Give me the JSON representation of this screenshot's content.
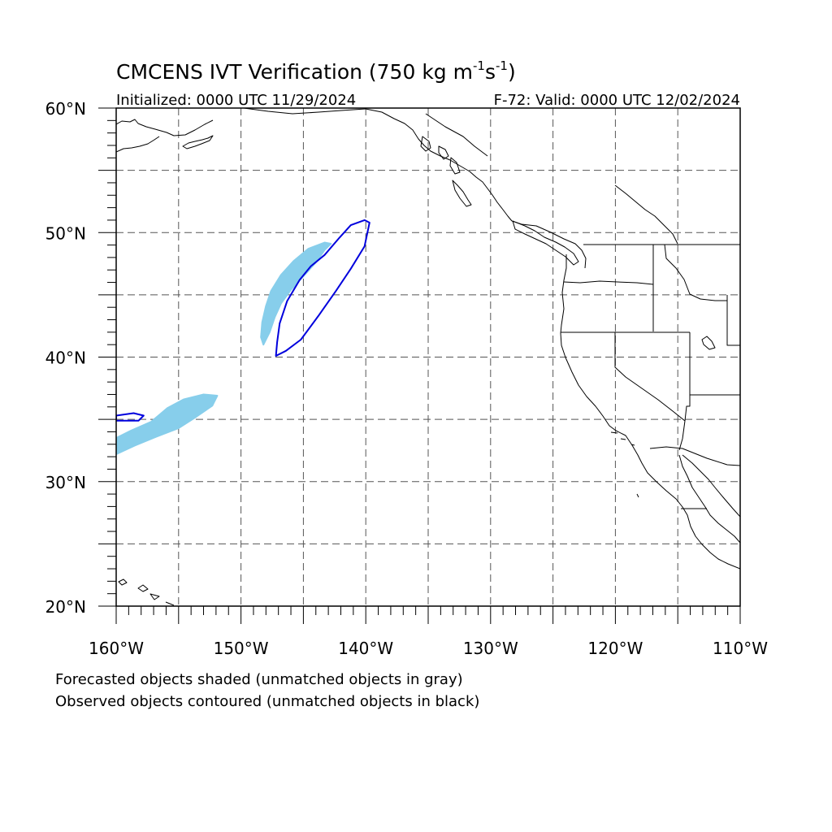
{
  "title": {
    "main": "CMCENS IVT Verification (750 kg m",
    "exp1": "-1",
    "mid": "s",
    "exp2": "-1",
    "close": ")"
  },
  "subtitle_left": "Initialized: 0000 UTC 11/29/2024",
  "subtitle_right": "F-72: Valid: 0000 UTC 12/02/2024",
  "map": {
    "lon_range": [
      -160,
      -110
    ],
    "lat_range": [
      20,
      60
    ],
    "grid_lines": "dashed",
    "grid_lon_step": 5,
    "grid_lat_step": 5,
    "lat_labels": [
      {
        "lat": 60,
        "text": "60°N"
      },
      {
        "lat": 50,
        "text": "50°N"
      },
      {
        "lat": 40,
        "text": "40°N"
      },
      {
        "lat": 30,
        "text": "30°N"
      },
      {
        "lat": 20,
        "text": "20°N"
      }
    ],
    "lon_labels": [
      {
        "lon": -160,
        "text": "160°W"
      },
      {
        "lon": -150,
        "text": "150°W"
      },
      {
        "lon": -140,
        "text": "140°W"
      },
      {
        "lon": -130,
        "text": "130°W"
      },
      {
        "lon": -120,
        "text": "120°W"
      },
      {
        "lon": -110,
        "text": "110°W"
      }
    ],
    "colors": {
      "forecast_fill": "#87ceeb",
      "observed_contour": "#0000dd",
      "coastline": "#000000",
      "grid": "#555555"
    }
  },
  "forecast_objects": [
    {
      "name": "forecast-object-north",
      "polygon": [
        [
          -148.2,
          41.0
        ],
        [
          -147.7,
          42.0
        ],
        [
          -147.3,
          43.2
        ],
        [
          -146.8,
          44.3
        ],
        [
          -146.0,
          45.4
        ],
        [
          -145.0,
          46.5
        ],
        [
          -144.0,
          47.6
        ],
        [
          -143.3,
          48.6
        ],
        [
          -142.8,
          49.1
        ],
        [
          -143.3,
          49.2
        ],
        [
          -144.6,
          48.7
        ],
        [
          -145.8,
          47.7
        ],
        [
          -146.8,
          46.6
        ],
        [
          -147.6,
          45.3
        ],
        [
          -148.0,
          44.1
        ],
        [
          -148.3,
          42.8
        ],
        [
          -148.4,
          41.6
        ]
      ]
    },
    {
      "name": "forecast-object-south",
      "polygon": [
        [
          -160.0,
          32.2
        ],
        [
          -158.5,
          32.9
        ],
        [
          -156.8,
          33.6
        ],
        [
          -155.0,
          34.3
        ],
        [
          -153.6,
          35.2
        ],
        [
          -152.3,
          36.1
        ],
        [
          -151.9,
          36.9
        ],
        [
          -153.0,
          37.0
        ],
        [
          -154.6,
          36.6
        ],
        [
          -155.9,
          35.9
        ],
        [
          -157.2,
          34.8
        ],
        [
          -158.8,
          34.1
        ],
        [
          -160.0,
          33.5
        ]
      ]
    }
  ],
  "observed_objects": [
    {
      "name": "observed-object-north",
      "polygon": [
        [
          -147.2,
          40.1
        ],
        [
          -146.4,
          40.5
        ],
        [
          -145.2,
          41.4
        ],
        [
          -143.8,
          43.3
        ],
        [
          -142.4,
          45.3
        ],
        [
          -141.2,
          47.1
        ],
        [
          -140.1,
          48.9
        ],
        [
          -139.7,
          50.8
        ],
        [
          -140.1,
          51.0
        ],
        [
          -141.2,
          50.6
        ],
        [
          -142.1,
          49.6
        ],
        [
          -143.3,
          48.2
        ],
        [
          -144.4,
          47.3
        ],
        [
          -145.3,
          46.2
        ],
        [
          -146.3,
          44.5
        ],
        [
          -146.9,
          42.7
        ],
        [
          -147.1,
          41.2
        ]
      ]
    },
    {
      "name": "observed-object-south",
      "polygon": [
        [
          -160.0,
          35.3
        ],
        [
          -158.6,
          35.5
        ],
        [
          -157.8,
          35.3
        ],
        [
          -158.2,
          34.9
        ],
        [
          -159.2,
          34.9
        ],
        [
          -160.0,
          34.9
        ]
      ]
    }
  ],
  "notes": [
    "Forecasted objects shaded (unmatched objects in gray)",
    "Observed objects contoured (unmatched objects in black)"
  ]
}
